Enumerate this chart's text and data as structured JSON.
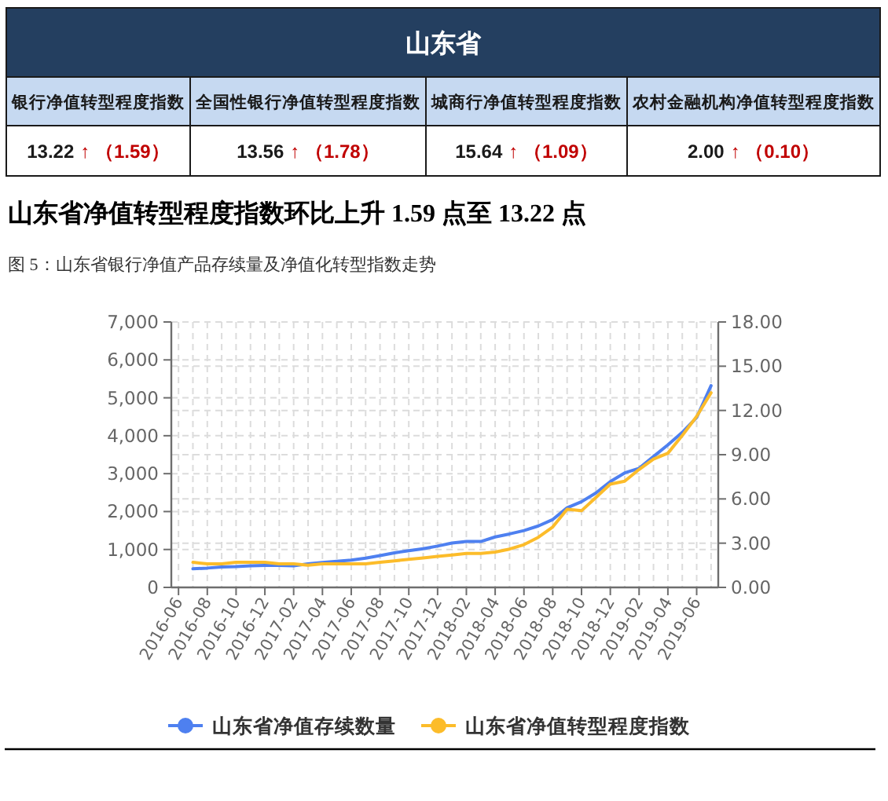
{
  "chart_data": [
    {
      "type": "other",
      "title": "山东省",
      "categories": [
        "银行净值转型程度指数",
        "全国性银行净值转型程度指数",
        "城商行净值转型程度指数",
        "农村金融机构净值转型程度指数"
      ],
      "annotations": [
        "13.22",
        "↑ （1.59）",
        "13.56",
        "↑ （1.78）",
        "15.64",
        "↑ （1.09）",
        "2.00",
        "↑ （0.10）"
      ]
    },
    {
      "type": "line",
      "title": "山东省净值转型程度指数环比上升 1.59 点至 13.22 点",
      "subtitle": "图 5：山东省银行净值产品存续量及净值化转型指数走势",
      "categories": [
        "2016-06",
        null,
        "2016-08",
        null,
        "2016-10",
        null,
        "2016-12",
        null,
        "2017-02",
        null,
        "2017-04",
        null,
        "2017-06",
        null,
        "2017-08",
        null,
        "2017-10",
        null,
        "2017-12",
        null,
        "2018-02",
        null,
        "2018-04",
        null,
        "2018-06",
        null,
        "2018-08",
        null,
        "2018-10",
        null,
        "2018-12",
        null,
        "2019-02",
        null,
        "2019-04",
        null,
        "2019-06",
        null
      ],
      "series": [
        {
          "name": "山东省净值存续数量",
          "color": "#4e80f0",
          "values": [
            null,
            490,
            510,
            540,
            550,
            570,
            580,
            580,
            570,
            620,
            660,
            690,
            720,
            770,
            840,
            910,
            970,
            1020,
            1090,
            1170,
            1210,
            1210,
            1330,
            1410,
            1500,
            1620,
            1790,
            2100,
            2260,
            2490,
            2790,
            3020,
            3140,
            3450,
            3760,
            4090,
            4480,
            5320
          ]
        },
        {
          "name": "山东省净值转型程度指数",
          "color": "#fcbc2a",
          "axis": "y2",
          "values": [
            null,
            1.7,
            1.6,
            1.6,
            1.7,
            1.7,
            1.7,
            1.6,
            1.6,
            1.5,
            1.6,
            1.6,
            1.6,
            1.6,
            1.7,
            1.8,
            1.9,
            2.0,
            2.1,
            2.2,
            2.3,
            2.3,
            2.4,
            2.6,
            2.9,
            3.4,
            4.1,
            5.3,
            5.2,
            6.1,
            7.0,
            7.2,
            8.0,
            8.7,
            9.1,
            10.3,
            11.6,
            13.2
          ]
        }
      ],
      "ylim": [
        0,
        7000
      ],
      "yticks": [
        0,
        {
          "value": 1000,
          "label": "1,000"
        },
        {
          "value": 2000,
          "label": "2,000"
        },
        {
          "value": 3000,
          "label": "3,000"
        },
        {
          "value": 4000,
          "label": "4,000"
        },
        {
          "value": 5000,
          "label": "5,000"
        },
        {
          "value": 6000,
          "label": "6,000"
        },
        {
          "value": 7000,
          "label": "7,000"
        }
      ],
      "y2lim": [
        0,
        18
      ],
      "y2ticks": [
        {
          "value": 0,
          "label": "0.00"
        },
        {
          "value": 3,
          "label": "3.00"
        },
        {
          "value": 6,
          "label": "6.00"
        },
        {
          "value": 9,
          "label": "9.00"
        },
        {
          "value": 12,
          "label": "12.00"
        },
        {
          "value": 15,
          "label": "15.00"
        },
        {
          "value": 18,
          "label": "18.00"
        }
      ],
      "grid": true,
      "legend": "bottom"
    }
  ]
}
